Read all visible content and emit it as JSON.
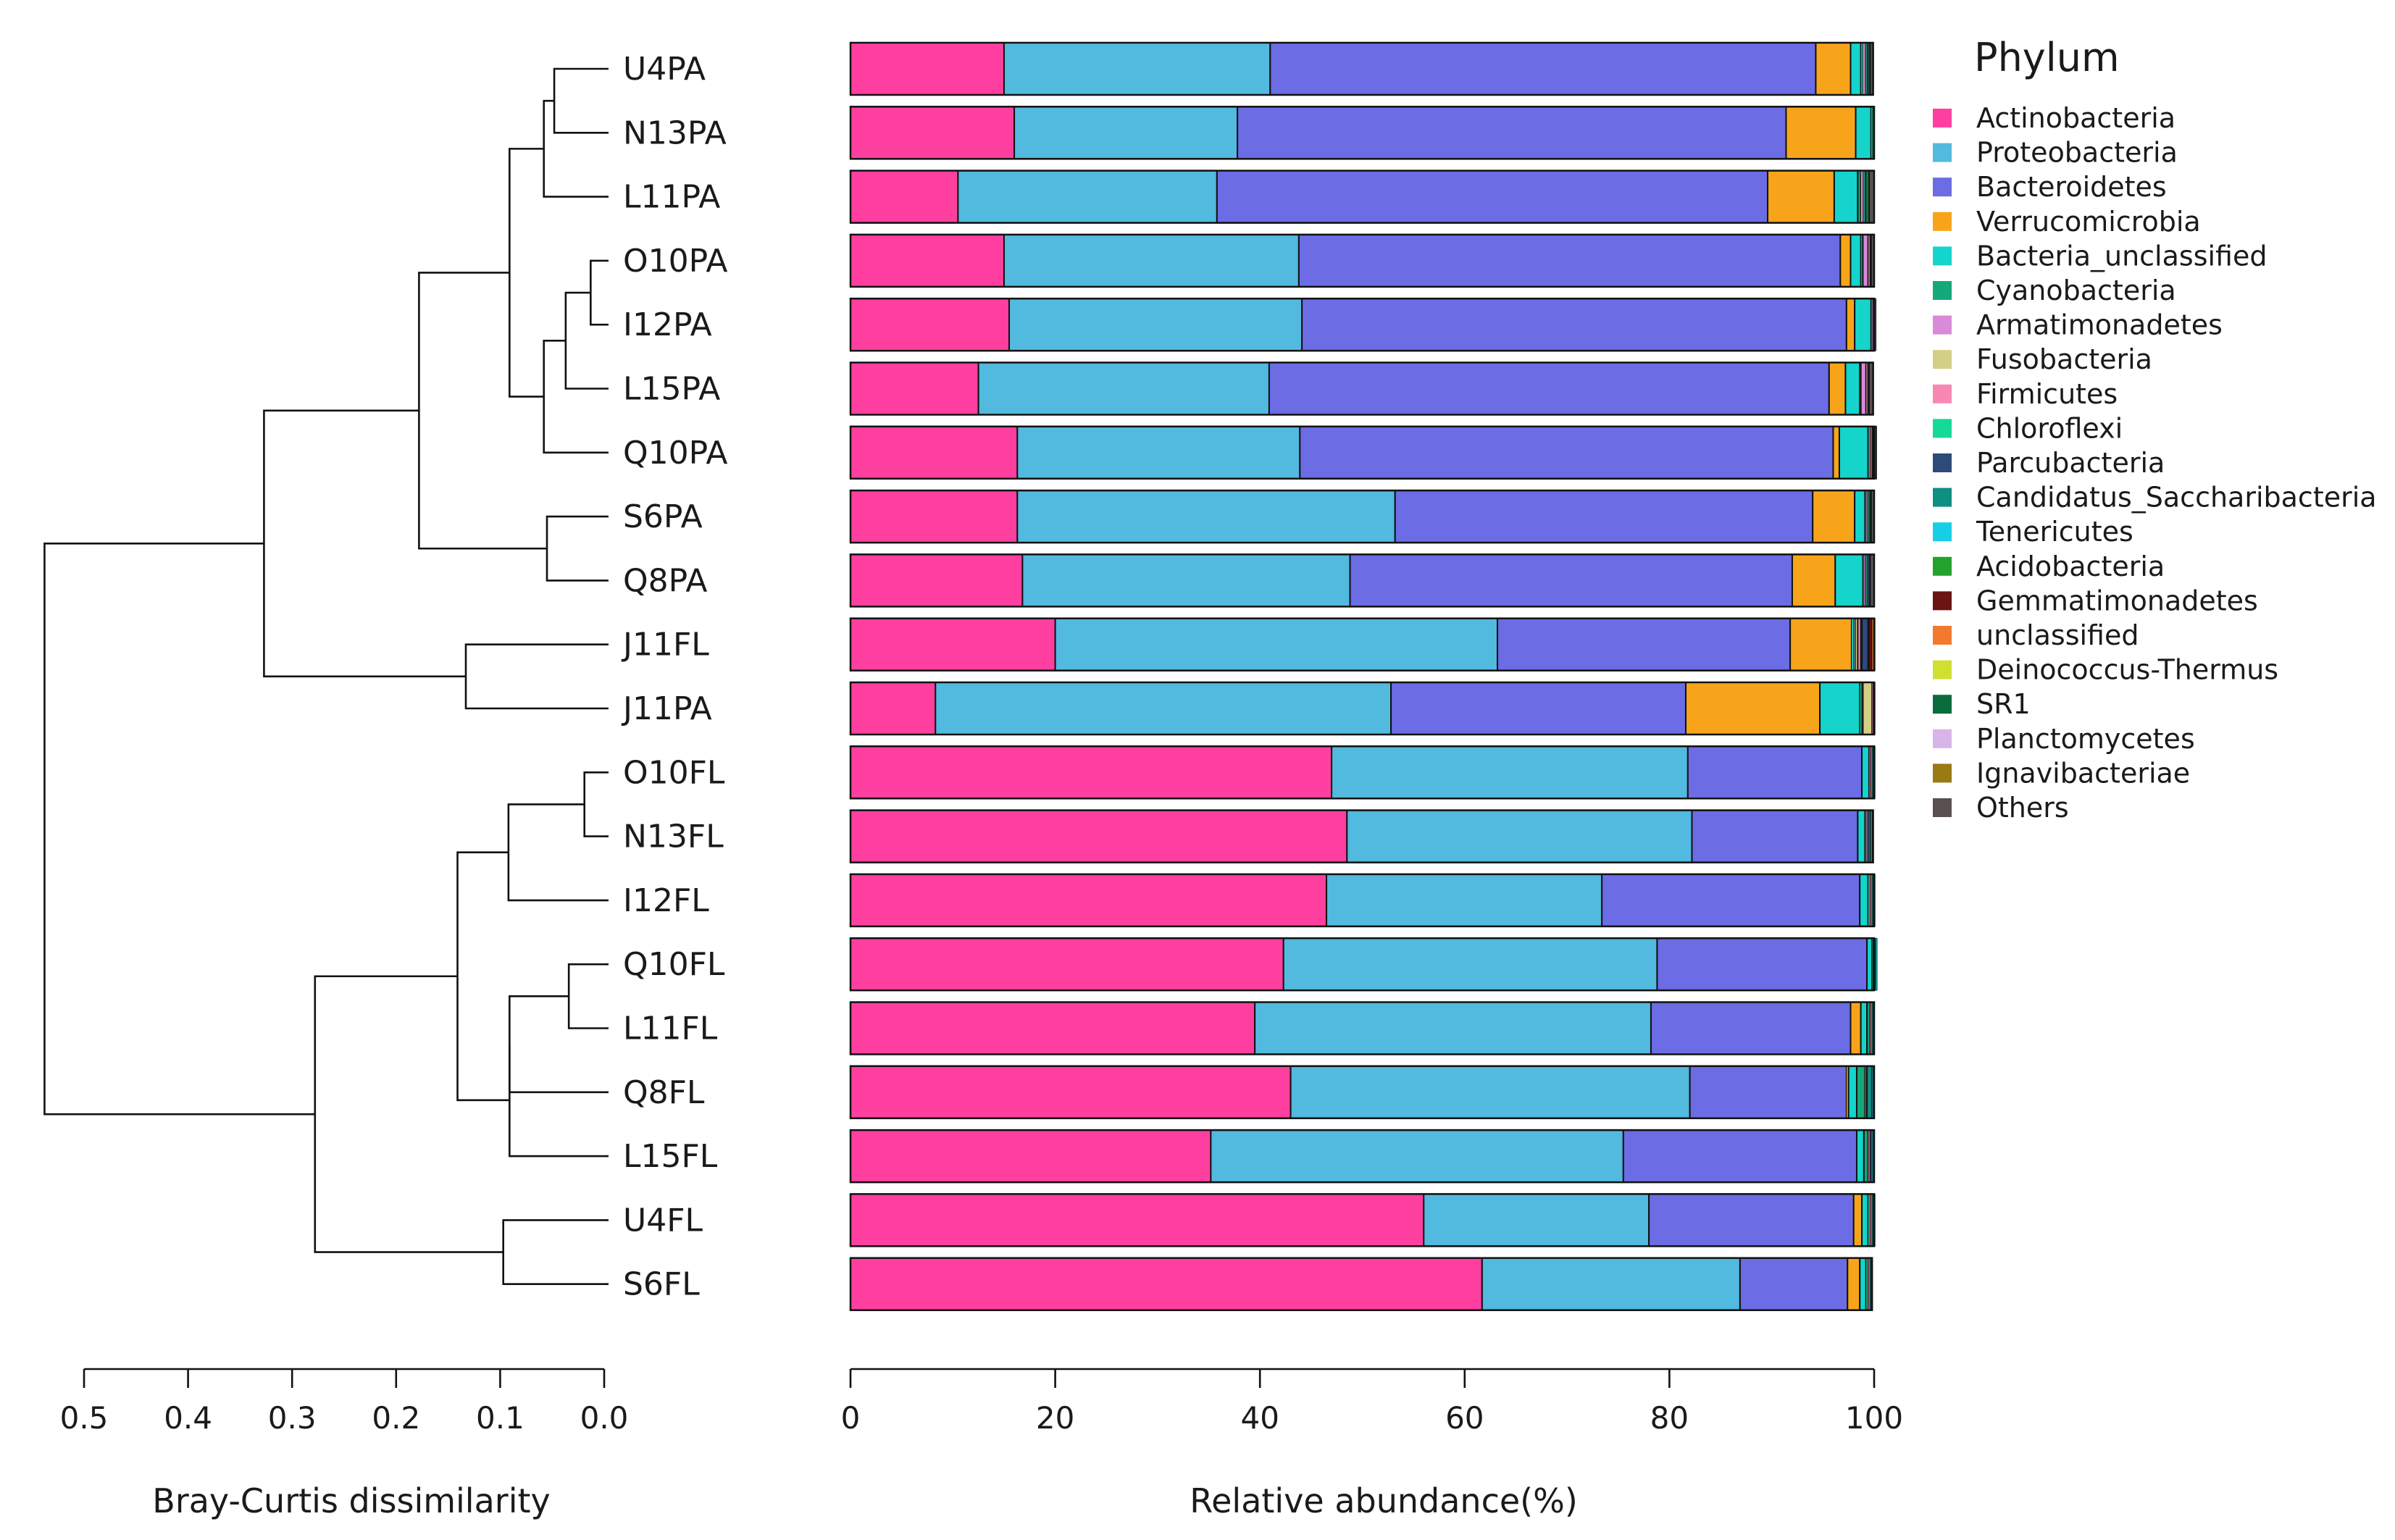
{
  "chart_data": {
    "type": "bar",
    "orientation": "horizontal",
    "stacked": true,
    "dendrogram": {
      "axis_label": "Bray-Curtis dissimilarity",
      "ticks": [
        0.5,
        0.4,
        0.3,
        0.2,
        0.1,
        0.0
      ],
      "xlim": [
        0.5,
        0.0
      ],
      "merges": [
        {
          "id": "c1",
          "left": "U4PA",
          "right": "N13PA",
          "height": 0.048
        },
        {
          "id": "c2",
          "left": "O10PA",
          "right": "I12PA",
          "height": 0.013
        },
        {
          "id": "c3",
          "left": "c2",
          "right": "L15PA",
          "height": 0.037
        },
        {
          "id": "c4",
          "left": "c1",
          "right": "L11PA",
          "height": 0.058
        },
        {
          "id": "c5",
          "left": "c3",
          "right": "Q10PA",
          "height": 0.058
        },
        {
          "id": "c6",
          "left": "c4",
          "right": "c5",
          "height": 0.091
        },
        {
          "id": "c7",
          "left": "S6PA",
          "right": "Q8PA",
          "height": 0.055
        },
        {
          "id": "c8",
          "left": "c6",
          "right": "c7",
          "height": 0.178
        },
        {
          "id": "c9",
          "left": "J11FL",
          "right": "J11PA",
          "height": 0.133
        },
        {
          "id": "c10",
          "left": "c8",
          "right": "c9",
          "height": 0.327
        },
        {
          "id": "c11",
          "left": "O10FL",
          "right": "N13FL",
          "height": 0.019
        },
        {
          "id": "c12",
          "left": "c11",
          "right": "I12FL",
          "height": 0.092
        },
        {
          "id": "c13",
          "left": "Q10FL",
          "right": "L11FL",
          "height": 0.034
        },
        {
          "id": "c14",
          "left": "c13",
          "right": "Q8FL",
          "height": 0.091
        },
        {
          "id": "c15",
          "left": "c14",
          "right": "L15FL",
          "height": 0.091
        },
        {
          "id": "c16",
          "left": "c12",
          "right": "c15",
          "height": 0.141
        },
        {
          "id": "c17",
          "left": "U4FL",
          "right": "S6FL",
          "height": 0.097
        },
        {
          "id": "c18",
          "left": "c16",
          "right": "c17",
          "height": 0.278
        },
        {
          "id": "c19",
          "left": "c10",
          "right": "c18",
          "height": 0.538
        }
      ]
    },
    "samples": [
      "U4PA",
      "N13PA",
      "L11PA",
      "O10PA",
      "I12PA",
      "L15PA",
      "Q10PA",
      "S6PA",
      "Q8PA",
      "J11FL",
      "J11PA",
      "O10FL",
      "N13FL",
      "I12FL",
      "Q10FL",
      "L11FL",
      "Q8FL",
      "L15FL",
      "U4FL",
      "S6FL"
    ],
    "bar_axis": {
      "label": "Relative abundance(%)",
      "ticks": [
        0,
        20,
        40,
        60,
        80,
        100
      ],
      "xlim": [
        0,
        100
      ]
    },
    "legend": {
      "title": "Phylum",
      "position": "right"
    },
    "series": [
      {
        "name": "Actinobacteria",
        "color": "#ff3fa0",
        "values": [
          15.0,
          16.0,
          10.5,
          15.0,
          15.5,
          12.5,
          16.3,
          16.3,
          16.8,
          20.0,
          8.3,
          47.0,
          48.5,
          46.5,
          42.3,
          39.5,
          43.0,
          35.2,
          56.0,
          61.7
        ]
      },
      {
        "name": "Proteobacteria",
        "color": "#52b9df",
        "values": [
          26.0,
          21.8,
          25.3,
          28.8,
          28.6,
          28.4,
          27.6,
          36.9,
          32.0,
          43.2,
          44.5,
          34.8,
          33.7,
          26.9,
          36.5,
          38.7,
          39.0,
          40.3,
          22.0,
          25.2
        ]
      },
      {
        "name": "Bacteroidetes",
        "color": "#6c6ce4",
        "values": [
          53.3,
          53.6,
          53.8,
          52.9,
          53.2,
          54.7,
          52.1,
          40.8,
          43.2,
          28.6,
          28.8,
          17.0,
          16.2,
          25.2,
          20.5,
          19.5,
          15.3,
          22.8,
          20.0,
          10.5
        ]
      },
      {
        "name": "Verrucomicrobia",
        "color": "#f8a41a",
        "values": [
          3.4,
          6.8,
          6.5,
          1.0,
          0.8,
          1.6,
          0.6,
          4.1,
          4.2,
          6.0,
          13.1,
          0,
          0,
          0,
          0,
          1.0,
          0.2,
          0,
          0.8,
          1.2
        ]
      },
      {
        "name": "Bacteria_unclassified",
        "color": "#14d4cc",
        "values": [
          1.0,
          1.5,
          2.3,
          1.0,
          1.6,
          1.4,
          2.8,
          1.0,
          2.7,
          0.2,
          3.9,
          0.7,
          0.7,
          0.8,
          0.5,
          0.6,
          0.8,
          0.7,
          0.6,
          0.6
        ]
      },
      {
        "name": "Cyanobacteria",
        "color": "#15a878",
        "values": [
          0.2,
          0,
          0.3,
          0.2,
          0.1,
          0.1,
          0.1,
          0.1,
          0.1,
          0.1,
          0.2,
          0.1,
          0.1,
          0.2,
          0.1,
          0.3,
          0.8,
          0.4,
          0.2,
          0.2
        ]
      },
      {
        "name": "Armatimonadetes",
        "color": "#d98ad9",
        "values": [
          0.2,
          0,
          0.2,
          0.5,
          0.1,
          0.5,
          0.1,
          0.1,
          0.1,
          0.1,
          0.1,
          0,
          0,
          0,
          0,
          0,
          0,
          0,
          0,
          0
        ]
      },
      {
        "name": "Fusobacteria",
        "color": "#d3cf84",
        "values": [
          0,
          0,
          0,
          0,
          0,
          0,
          0,
          0,
          0,
          0.2,
          0.9,
          0,
          0,
          0,
          0,
          0,
          0,
          0,
          0,
          0
        ]
      },
      {
        "name": "Firmicutes",
        "color": "#f788b4",
        "values": [
          0.1,
          0.1,
          0.1,
          0.1,
          0.1,
          0.1,
          0.1,
          0.1,
          0.1,
          0.3,
          0.1,
          0.1,
          0.1,
          0.1,
          0.1,
          0.1,
          0.1,
          0.1,
          0.1,
          0.1
        ]
      },
      {
        "name": "Chloroflexi",
        "color": "#16d997",
        "values": [
          0.1,
          0.1,
          0.1,
          0.1,
          0.1,
          0.1,
          0.1,
          0.1,
          0.1,
          0.1,
          0.1,
          0.1,
          0.1,
          0.1,
          0.1,
          0.1,
          0.1,
          0.1,
          0.1,
          0.1
        ]
      },
      {
        "name": "Parcubacteria",
        "color": "#2d4a7a",
        "values": [
          0.1,
          0,
          0.1,
          0.1,
          0,
          0.1,
          0.1,
          0.1,
          0.2,
          0.6,
          0,
          0,
          0.2,
          0,
          0,
          0,
          0,
          0.1,
          0,
          0
        ]
      },
      {
        "name": "Candidatus_Saccharibacteria",
        "color": "#0f8e82",
        "values": [
          0.1,
          0,
          0.1,
          0,
          0,
          0,
          0,
          0.1,
          0.1,
          0.1,
          0.1,
          0.1,
          0.1,
          0.1,
          0.1,
          0.1,
          0.5,
          0.1,
          0.1,
          0.1
        ]
      },
      {
        "name": "Tenericutes",
        "color": "#16cfe6",
        "values": [
          0,
          0,
          0,
          0,
          0,
          0,
          0,
          0,
          0,
          0,
          0,
          0.1,
          0.1,
          0.1,
          0.1,
          0.1,
          0.1,
          0.1,
          0.1,
          0
        ]
      },
      {
        "name": "Acidobacteria",
        "color": "#23a32d",
        "values": [
          0.1,
          0,
          0.2,
          0,
          0,
          0,
          0,
          0,
          0,
          0,
          0,
          0,
          0,
          0,
          0,
          0,
          0,
          0,
          0,
          0
        ]
      },
      {
        "name": "Gemmatimonadetes",
        "color": "#6b1414",
        "values": [
          0,
          0,
          0,
          0,
          0,
          0,
          0,
          0,
          0,
          0.3,
          0,
          0,
          0,
          0,
          0,
          0,
          0,
          0,
          0,
          0
        ]
      },
      {
        "name": "unclassified",
        "color": "#f27a2e",
        "values": [
          0,
          0,
          0,
          0,
          0,
          0,
          0,
          0,
          0,
          0.2,
          0,
          0,
          0,
          0,
          0,
          0,
          0,
          0,
          0,
          0
        ]
      },
      {
        "name": "Deinococcus-Thermus",
        "color": "#cfe033",
        "values": [
          0,
          0,
          0,
          0,
          0,
          0,
          0,
          0,
          0,
          0,
          0,
          0,
          0,
          0,
          0,
          0,
          0,
          0,
          0,
          0
        ]
      },
      {
        "name": "SR1",
        "color": "#0a6b3c",
        "values": [
          0,
          0,
          0,
          0,
          0,
          0,
          0,
          0,
          0,
          0,
          0,
          0,
          0,
          0,
          0,
          0,
          0,
          0,
          0,
          0
        ]
      },
      {
        "name": "Planctomycetes",
        "color": "#d9b4e8",
        "values": [
          0,
          0,
          0,
          0,
          0,
          0,
          0,
          0,
          0,
          0,
          0,
          0,
          0,
          0,
          0,
          0,
          0,
          0,
          0,
          0
        ]
      },
      {
        "name": "Ignavibacteriae",
        "color": "#9a7a12",
        "values": [
          0,
          0,
          0,
          0,
          0,
          0,
          0,
          0,
          0,
          0,
          0,
          0,
          0,
          0,
          0,
          0,
          0,
          0,
          0,
          0
        ]
      },
      {
        "name": "Others",
        "color": "#5a5052",
        "values": [
          0.3,
          0.1,
          0.5,
          0.3,
          0.1,
          0.4,
          0.3,
          0.3,
          0.4,
          0.1,
          0,
          0.1,
          0.1,
          0.1,
          0,
          0,
          0.1,
          0.1,
          0.1,
          0.1
        ]
      }
    ]
  }
}
